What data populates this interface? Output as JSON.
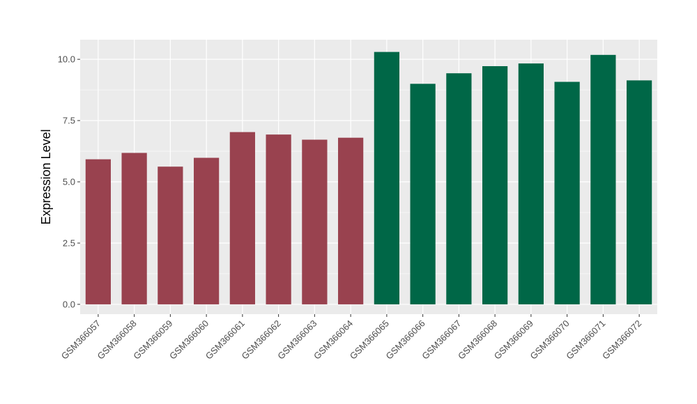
{
  "chart_data": {
    "type": "bar",
    "title": "",
    "xlabel": "",
    "ylabel": "Expression Level",
    "ylim": [
      -0.4,
      10.8
    ],
    "yticks": [
      0.0,
      2.5,
      5.0,
      7.5,
      10.0
    ],
    "ytick_labels": [
      "0.0",
      "2.5",
      "5.0",
      "7.5",
      "10.0"
    ],
    "grid": true,
    "legend": "none",
    "categories": [
      "GSM366057",
      "GSM366058",
      "GSM366059",
      "GSM366060",
      "GSM366061",
      "GSM366062",
      "GSM366063",
      "GSM366064",
      "GSM366065",
      "GSM366066",
      "GSM366067",
      "GSM366068",
      "GSM366069",
      "GSM366070",
      "GSM366071",
      "GSM366072"
    ],
    "values": [
      5.92,
      6.18,
      5.62,
      5.98,
      7.03,
      6.93,
      6.72,
      6.8,
      10.3,
      9.0,
      9.43,
      9.72,
      9.83,
      9.08,
      10.18,
      9.14
    ],
    "bar_colors": [
      "#99424f",
      "#99424f",
      "#99424f",
      "#99424f",
      "#99424f",
      "#99424f",
      "#99424f",
      "#99424f",
      "#006747",
      "#006747",
      "#006747",
      "#006747",
      "#006747",
      "#006747",
      "#006747",
      "#006747"
    ],
    "panel_background": "#ebebeb",
    "grid_color": "#ffffff"
  }
}
